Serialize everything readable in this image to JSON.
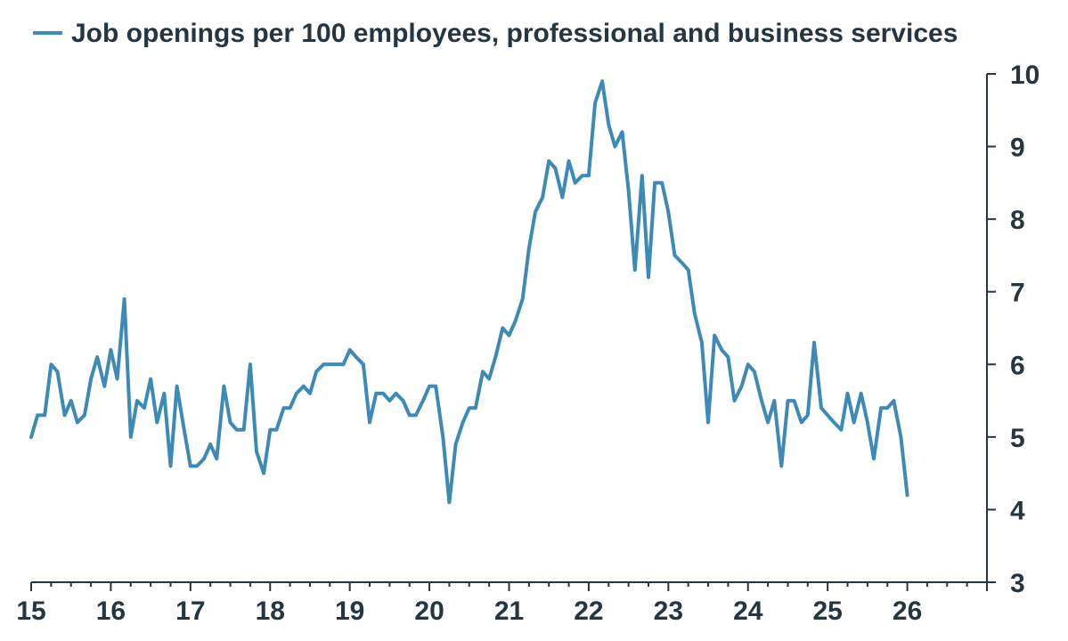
{
  "colors": {
    "series": "#3e8ab6",
    "axis": "#243642",
    "text": "#243642",
    "background": "#ffffff"
  },
  "chart_data": {
    "type": "line",
    "title": "",
    "xlabel": "",
    "ylabel": "",
    "legend_position": "top",
    "grid": false,
    "xlim": [
      15,
      27
    ],
    "ylim": [
      3,
      10
    ],
    "x_ticks": [
      "15",
      "16",
      "17",
      "18",
      "19",
      "20",
      "21",
      "22",
      "23",
      "24",
      "25",
      "26"
    ],
    "y_ticks": [
      "3",
      "4",
      "5",
      "6",
      "7",
      "8",
      "9",
      "10"
    ],
    "series": [
      {
        "name": "Job openings per 100 employees, professional and business services",
        "x": [
          15.0,
          15.08,
          15.17,
          15.25,
          15.33,
          15.42,
          15.5,
          15.58,
          15.67,
          15.75,
          15.83,
          15.92,
          16.0,
          16.08,
          16.17,
          16.25,
          16.33,
          16.42,
          16.5,
          16.58,
          16.67,
          16.75,
          16.83,
          16.92,
          17.0,
          17.08,
          17.17,
          17.25,
          17.33,
          17.42,
          17.5,
          17.58,
          17.67,
          17.75,
          17.83,
          17.92,
          18.0,
          18.08,
          18.17,
          18.25,
          18.33,
          18.42,
          18.5,
          18.58,
          18.67,
          18.75,
          18.83,
          18.92,
          19.0,
          19.08,
          19.17,
          19.25,
          19.33,
          19.42,
          19.5,
          19.58,
          19.67,
          19.75,
          19.83,
          19.92,
          20.0,
          20.08,
          20.17,
          20.25,
          20.33,
          20.42,
          20.5,
          20.58,
          20.67,
          20.75,
          20.83,
          20.92,
          21.0,
          21.08,
          21.17,
          21.25,
          21.33,
          21.42,
          21.5,
          21.58,
          21.67,
          21.75,
          21.83,
          21.92,
          22.0,
          22.08,
          22.17,
          22.25,
          22.33,
          22.42,
          22.5,
          22.58,
          22.67,
          22.75,
          22.83,
          22.92,
          23.0,
          23.08,
          23.17,
          23.25,
          23.33,
          23.42,
          23.5,
          23.58,
          23.67,
          23.75,
          23.83,
          23.92,
          24.0,
          24.08,
          24.17,
          24.25,
          24.33,
          24.42,
          24.5,
          24.58,
          24.67,
          24.75,
          24.83,
          24.92,
          25.0,
          25.08,
          25.17,
          25.25,
          25.33,
          25.42,
          25.5,
          25.58,
          25.67,
          25.75,
          25.83,
          25.92,
          26.0
        ],
        "values": [
          5.0,
          5.3,
          5.3,
          6.0,
          5.9,
          5.3,
          5.5,
          5.2,
          5.3,
          5.8,
          6.1,
          5.7,
          6.2,
          5.8,
          6.9,
          5.0,
          5.5,
          5.4,
          5.8,
          5.2,
          5.6,
          4.6,
          5.7,
          5.1,
          4.6,
          4.6,
          4.7,
          4.9,
          4.7,
          5.7,
          5.2,
          5.1,
          5.1,
          6.0,
          4.8,
          4.5,
          5.1,
          5.1,
          5.4,
          5.4,
          5.6,
          5.7,
          5.6,
          5.9,
          6.0,
          6.0,
          6.0,
          6.0,
          6.2,
          6.1,
          6.0,
          5.2,
          5.6,
          5.6,
          5.5,
          5.6,
          5.5,
          5.3,
          5.3,
          5.5,
          5.7,
          5.7,
          5.0,
          4.1,
          4.9,
          5.2,
          5.4,
          5.4,
          5.9,
          5.8,
          6.1,
          6.5,
          6.4,
          6.6,
          6.9,
          7.6,
          8.1,
          8.3,
          8.8,
          8.7,
          8.3,
          8.8,
          8.5,
          8.6,
          8.6,
          9.6,
          9.9,
          9.3,
          9.0,
          9.2,
          8.4,
          7.3,
          8.6,
          7.2,
          8.5,
          8.5,
          8.1,
          7.5,
          7.4,
          7.3,
          6.7,
          6.3,
          5.2,
          6.4,
          6.2,
          6.1,
          5.5,
          5.7,
          6.0,
          5.9,
          5.5,
          5.2,
          5.5,
          4.6,
          5.5,
          5.5,
          5.2,
          5.3,
          6.3,
          5.4,
          5.3,
          5.2,
          5.1,
          5.6,
          5.2,
          5.6,
          5.2,
          4.7,
          5.4,
          5.4,
          5.5,
          5.0,
          4.2
        ]
      }
    ]
  }
}
